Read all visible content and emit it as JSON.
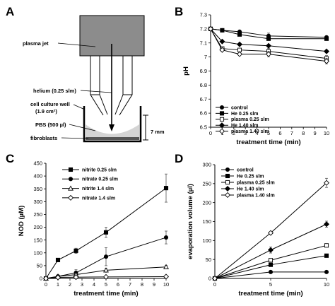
{
  "panels": {
    "A": {
      "letter": "A",
      "labels": {
        "plasma_jet": "plasma jet",
        "helium": "helium (0.25 slm)",
        "well_line1": "cell culture well",
        "well_line2": "(1.9 cm²)",
        "pbs": "PBS (500 µl)",
        "fibroblasts": "fibroblasts",
        "depth": "7 mm"
      },
      "colors": {
        "jet": "#8c8c8c",
        "liquid": "#d4d4d4",
        "cells": "#555555"
      }
    },
    "B": {
      "letter": "B"
    },
    "C": {
      "letter": "C"
    },
    "D": {
      "letter": "D"
    }
  },
  "chart_data": [
    {
      "id": "B",
      "type": "line",
      "xlabel": "treatment time (min)",
      "ylabel": "pH",
      "xlim": [
        0,
        10
      ],
      "ylim": [
        6.5,
        7.3
      ],
      "xticks": [
        0,
        1,
        2,
        3,
        4,
        5,
        6,
        7,
        8,
        9,
        10
      ],
      "yticks": [
        6.5,
        6.6,
        6.7,
        6.8,
        6.9,
        7,
        7.1,
        7.2,
        7.3
      ],
      "legend_placement": "bottom-left",
      "series": [
        {
          "name": "control",
          "marker": "circle-filled",
          "x": [
            0,
            1,
            2.5,
            5,
            10
          ],
          "y": [
            7.2,
            7.19,
            7.18,
            7.15,
            7.14
          ],
          "err": [
            0,
            0,
            0,
            0.02,
            0
          ]
        },
        {
          "name": "He 0.25 slm",
          "marker": "square-filled",
          "x": [
            0,
            1,
            2.5,
            5,
            10
          ],
          "y": [
            7.2,
            7.19,
            7.16,
            7.13,
            7.13
          ],
          "err": [
            0,
            0,
            0,
            0.01,
            0
          ]
        },
        {
          "name": "plasma 0.25 slm",
          "marker": "square-open",
          "x": [
            0,
            1,
            2.5,
            5,
            10
          ],
          "y": [
            7.2,
            7.06,
            7.05,
            7.04,
            6.99
          ],
          "err": [
            0,
            0,
            0,
            0.02,
            0.02
          ]
        },
        {
          "name": "He 1.40 slm",
          "marker": "diamond-filled",
          "x": [
            0,
            1,
            2.5,
            5,
            10
          ],
          "y": [
            7.2,
            7.11,
            7.09,
            7.08,
            7.04
          ],
          "err": [
            0,
            0,
            0,
            0,
            0
          ]
        },
        {
          "name": "plasma 1.40 slm",
          "marker": "diamond-open",
          "x": [
            0,
            1,
            2.5,
            5,
            10
          ],
          "y": [
            7.2,
            7.05,
            7.02,
            7.02,
            6.97
          ],
          "err": [
            0,
            0,
            0,
            0.02,
            0.02
          ]
        }
      ]
    },
    {
      "id": "C",
      "type": "line",
      "xlabel": "treatment time (min)",
      "ylabel": "NOD (µM)",
      "xlim": [
        0,
        10
      ],
      "ylim": [
        0,
        450
      ],
      "xticks": [
        0,
        1,
        2,
        3,
        4,
        5,
        6,
        7,
        8,
        9,
        10
      ],
      "yticks": [
        0,
        50,
        100,
        150,
        200,
        250,
        300,
        350,
        400,
        450
      ],
      "legend_placement": "top-left",
      "series": [
        {
          "name": "nitrite 0.25 slm",
          "marker": "square-filled",
          "x": [
            0,
            1,
            2.5,
            5,
            10
          ],
          "y": [
            0,
            72,
            108,
            180,
            353
          ],
          "err": [
            0,
            5,
            10,
            20,
            55
          ]
        },
        {
          "name": "nitrate 0.25 slm",
          "marker": "circle-filled",
          "x": [
            0,
            1,
            2.5,
            5,
            10
          ],
          "y": [
            0,
            8,
            22,
            85,
            160
          ],
          "err": [
            0,
            3,
            12,
            35,
            25
          ]
        },
        {
          "name": "nitrite 1.4 slm",
          "marker": "triangle-open",
          "x": [
            0,
            1,
            2.5,
            5,
            10
          ],
          "y": [
            0,
            8,
            15,
            32,
            45
          ],
          "err": [
            0,
            2,
            4,
            8,
            6
          ]
        },
        {
          "name": "nitrate 1.4 slm",
          "marker": "diamond-open",
          "x": [
            0,
            1,
            2.5,
            5,
            10
          ],
          "y": [
            0,
            4,
            5,
            6,
            7
          ],
          "err": [
            0,
            1,
            1,
            1,
            1
          ]
        }
      ]
    },
    {
      "id": "D",
      "type": "line",
      "xlabel": "treatment time (min)",
      "ylabel": "evaporation volume (µl)",
      "xlim": [
        0,
        10
      ],
      "ylim": [
        0,
        300
      ],
      "xticks": [
        0,
        5,
        10
      ],
      "yticks": [
        0,
        50,
        100,
        150,
        200,
        250,
        300
      ],
      "legend_placement": "top-left",
      "series": [
        {
          "name": "control",
          "marker": "circle-filled",
          "x": [
            0,
            5,
            10
          ],
          "y": [
            0,
            17,
            17
          ],
          "err": [
            0,
            0,
            0
          ]
        },
        {
          "name": "He 0.25 slm",
          "marker": "square-filled",
          "x": [
            0,
            5,
            10
          ],
          "y": [
            0,
            36,
            60
          ],
          "err": [
            0,
            0,
            3
          ]
        },
        {
          "name": "plasma 0.25 slm",
          "marker": "square-open",
          "x": [
            0,
            5,
            10
          ],
          "y": [
            0,
            48,
            87
          ],
          "err": [
            0,
            0,
            3
          ]
        },
        {
          "name": "He 1.40 slm",
          "marker": "diamond-filled",
          "x": [
            0,
            5,
            10
          ],
          "y": [
            0,
            75,
            143
          ],
          "err": [
            0,
            8,
            8
          ]
        },
        {
          "name": "plasma 1.40 slm",
          "marker": "diamond-open",
          "x": [
            0,
            5,
            10
          ],
          "y": [
            0,
            120,
            252
          ],
          "err": [
            0,
            0,
            12
          ]
        }
      ]
    }
  ]
}
